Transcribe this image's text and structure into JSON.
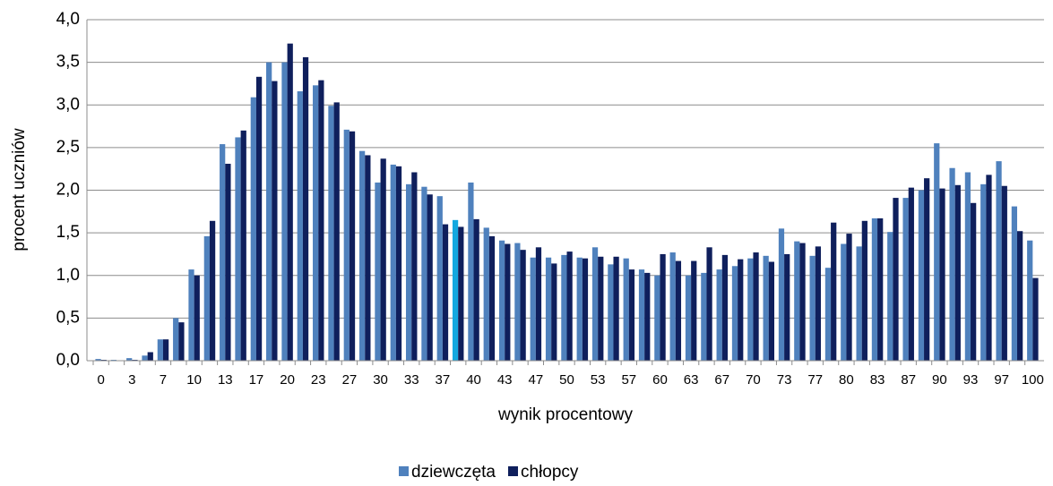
{
  "chart_data": {
    "type": "bar",
    "xlabel": "wynik procentowy",
    "ylabel": "procent uczniów",
    "categories": [
      "0",
      null,
      "3",
      null,
      "7",
      null,
      "10",
      null,
      "13",
      null,
      "17",
      null,
      "20",
      null,
      "23",
      null,
      "27",
      null,
      "30",
      null,
      "33",
      null,
      "37",
      null,
      "40",
      null,
      "43",
      null,
      "47",
      null,
      "50",
      null,
      "53",
      null,
      "57",
      null,
      "60",
      null,
      "63",
      null,
      "67",
      null,
      "70",
      null,
      "73",
      null,
      "77",
      null,
      "80",
      null,
      "83",
      null,
      "87",
      null,
      "90",
      null,
      "93",
      null,
      "97",
      null,
      "100"
    ],
    "series": [
      {
        "name": "dziewczęta",
        "color": "#4f81bd",
        "highlight": {
          "index": 23,
          "color": "#14a8e0"
        },
        "values": [
          0.02,
          0.01,
          0.03,
          0.06,
          0.25,
          0.5,
          1.07,
          1.46,
          2.54,
          2.62,
          3.09,
          3.5,
          3.5,
          3.16,
          3.23,
          2.99,
          2.71,
          2.46,
          2.09,
          2.3,
          2.07,
          2.04,
          1.93,
          1.65,
          2.09,
          1.56,
          1.41,
          1.38,
          1.21,
          1.21,
          1.24,
          1.21,
          1.33,
          1.13,
          1.2,
          1.07,
          1.0,
          1.27,
          1.0,
          1.03,
          1.07,
          1.11,
          1.2,
          1.23,
          1.55,
          1.4,
          1.23,
          1.09,
          1.37,
          1.34,
          1.67,
          1.51,
          1.91,
          2.0,
          2.55,
          2.26,
          2.21,
          2.07,
          2.34,
          1.81,
          1.41
        ]
      },
      {
        "name": "chłopcy",
        "color": "#0f1f5c",
        "values": [
          0.01,
          0.0,
          0.01,
          0.1,
          0.25,
          0.45,
          1.0,
          1.64,
          2.31,
          2.7,
          3.33,
          3.28,
          3.72,
          3.56,
          3.29,
          3.03,
          2.69,
          2.41,
          2.37,
          2.28,
          2.21,
          1.95,
          1.6,
          1.57,
          1.66,
          1.46,
          1.37,
          1.3,
          1.33,
          1.14,
          1.28,
          1.2,
          1.22,
          1.22,
          1.07,
          1.03,
          1.25,
          1.17,
          1.17,
          1.33,
          1.24,
          1.19,
          1.27,
          1.16,
          1.25,
          1.38,
          1.34,
          1.62,
          1.49,
          1.64,
          1.67,
          1.91,
          2.03,
          2.14,
          2.02,
          2.06,
          1.85,
          2.18,
          2.05,
          1.52,
          0.97
        ]
      }
    ],
    "ylim": [
      0,
      4
    ],
    "yticks": [
      {
        "value": 0,
        "label": "0,0"
      },
      {
        "value": 0.5,
        "label": "0,5"
      },
      {
        "value": 1,
        "label": "1,0"
      },
      {
        "value": 1.5,
        "label": "1,5"
      },
      {
        "value": 2,
        "label": "2,0"
      },
      {
        "value": 2.5,
        "label": "2,5"
      },
      {
        "value": 3,
        "label": "3,0"
      },
      {
        "value": 3.5,
        "label": "3,5"
      },
      {
        "value": 4,
        "label": "4,0"
      }
    ],
    "grid": true,
    "legend": "bottom"
  }
}
